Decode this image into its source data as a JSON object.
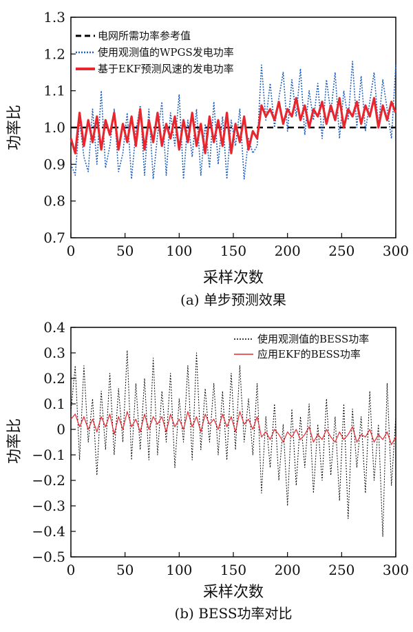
{
  "chart_data": [
    {
      "type": "line",
      "caption": "(a) 单步预测效果",
      "xlabel": "采样次数",
      "ylabel": "功率比",
      "xlim": [
        0,
        300
      ],
      "ylim": [
        0.7,
        1.3
      ],
      "xticks": [
        0,
        50,
        100,
        150,
        200,
        250,
        300
      ],
      "yticks": [
        "0.7",
        "0.8",
        "0.9",
        "1.0",
        "1.1",
        "1.2",
        "1.3"
      ],
      "legend_position": "top-left",
      "series": [
        {
          "name": "电网所需功率参考值",
          "style": "dashed",
          "color": "#000000",
          "x": [
            0,
            175,
            176,
            300
          ],
          "y": [
            1.0,
            1.0,
            1.0,
            1.0
          ]
        },
        {
          "name": "使用观测值的WPGS发电功率",
          "style": "dotted",
          "color": "#1f5fbf",
          "x": [
            0,
            4,
            8,
            12,
            16,
            20,
            24,
            28,
            32,
            36,
            40,
            44,
            48,
            52,
            56,
            60,
            64,
            68,
            72,
            76,
            80,
            84,
            88,
            92,
            96,
            100,
            104,
            108,
            112,
            116,
            120,
            124,
            128,
            132,
            136,
            140,
            144,
            148,
            152,
            156,
            160,
            164,
            168,
            172,
            176,
            180,
            184,
            188,
            192,
            196,
            200,
            204,
            208,
            212,
            216,
            220,
            224,
            228,
            232,
            236,
            240,
            244,
            248,
            252,
            256,
            260,
            264,
            268,
            272,
            276,
            280,
            284,
            288,
            292,
            296,
            300
          ],
          "y": [
            0.9,
            0.87,
            1.02,
            0.92,
            0.88,
            1.05,
            0.9,
            1.1,
            0.89,
            0.95,
            1.05,
            0.88,
            0.93,
            1.04,
            0.86,
            0.99,
            1.06,
            0.87,
            1.05,
            0.86,
            0.98,
            1.07,
            0.87,
            1.04,
            0.95,
            1.09,
            0.86,
            1.02,
            0.92,
            1.05,
            0.87,
            1.01,
            0.89,
            1.07,
            0.9,
            1.03,
            0.86,
            1.02,
            0.95,
            1.05,
            0.86,
            0.97,
            0.93,
            0.95,
            1.17,
            1.02,
            1.12,
            1.0,
            1.08,
            1.15,
            0.99,
            1.13,
            1.03,
            1.16,
            0.98,
            1.1,
            1.02,
            1.12,
            0.97,
            1.13,
            1.04,
            1.15,
            0.97,
            1.1,
            1.02,
            1.18,
            1.0,
            1.14,
            0.99,
            1.07,
            1.15,
            1.0,
            1.13,
            1.05,
            0.97,
            1.17
          ]
        },
        {
          "name": "基于EKF预测风速的发电功率",
          "style": "solid",
          "color": "#e8262e",
          "x": [
            0,
            4,
            8,
            12,
            16,
            20,
            24,
            28,
            32,
            36,
            40,
            44,
            48,
            52,
            56,
            60,
            64,
            68,
            72,
            76,
            80,
            84,
            88,
            92,
            96,
            100,
            104,
            108,
            112,
            116,
            120,
            124,
            128,
            132,
            136,
            140,
            144,
            148,
            152,
            156,
            160,
            164,
            168,
            172,
            176,
            180,
            184,
            188,
            192,
            196,
            200,
            204,
            208,
            212,
            216,
            220,
            224,
            228,
            232,
            236,
            240,
            244,
            248,
            252,
            256,
            260,
            264,
            268,
            272,
            276,
            280,
            284,
            288,
            292,
            296,
            300
          ],
          "y": [
            0.97,
            0.93,
            1.04,
            0.95,
            1.02,
            0.96,
            1.03,
            0.94,
            1.02,
            0.98,
            1.04,
            0.94,
            1.01,
            0.96,
            1.03,
            0.95,
            1.05,
            0.94,
            1.02,
            0.96,
            1.04,
            0.95,
            1.01,
            0.97,
            1.03,
            0.94,
            1.02,
            0.96,
            1.04,
            0.95,
            1.01,
            0.93,
            1.03,
            0.96,
            1.02,
            0.95,
            1.04,
            0.93,
            1.01,
            0.96,
            1.03,
            0.94,
            0.99,
            0.97,
            1.06,
            1.03,
            1.05,
            1.02,
            1.07,
            1.01,
            1.05,
            1.03,
            1.08,
            1.02,
            1.06,
            1.0,
            1.05,
            1.03,
            1.07,
            1.01,
            1.06,
            1.02,
            1.08,
            1.0,
            1.05,
            1.03,
            1.07,
            1.01,
            1.06,
            1.03,
            1.08,
            1.0,
            1.06,
            1.02,
            1.07,
            1.04
          ]
        }
      ]
    },
    {
      "type": "line",
      "caption": "(b) BESS功率对比",
      "xlabel": "采样次数",
      "ylabel": "功率比",
      "xlim": [
        0,
        300
      ],
      "ylim": [
        -0.5,
        0.4
      ],
      "xticks": [
        0,
        50,
        100,
        150,
        200,
        250,
        300
      ],
      "yticks": [
        "−0.5",
        "−0.4",
        "−0.3",
        "−0.2",
        "−0.1",
        "0",
        "0.1",
        "0.2",
        "0.3",
        "0.4"
      ],
      "legend_position": "top-right",
      "series": [
        {
          "name": "使用观测值的BESS功率",
          "style": "dotted",
          "color": "#000000",
          "x": [
            0,
            4,
            8,
            12,
            16,
            20,
            24,
            28,
            32,
            36,
            40,
            44,
            48,
            52,
            56,
            60,
            64,
            68,
            72,
            76,
            80,
            84,
            88,
            92,
            96,
            100,
            104,
            108,
            112,
            116,
            120,
            124,
            128,
            132,
            136,
            140,
            144,
            148,
            152,
            156,
            160,
            164,
            168,
            172,
            176,
            180,
            184,
            188,
            192,
            196,
            200,
            204,
            208,
            212,
            216,
            220,
            224,
            228,
            232,
            236,
            240,
            244,
            248,
            252,
            256,
            260,
            264,
            268,
            272,
            276,
            280,
            284,
            288,
            292,
            296,
            300
          ],
          "y": [
            0.07,
            0.25,
            -0.12,
            0.25,
            -0.05,
            0.12,
            -0.18,
            0.15,
            -0.08,
            0.22,
            -0.1,
            0.16,
            -0.05,
            0.31,
            -0.12,
            0.18,
            -0.08,
            0.2,
            -0.12,
            0.28,
            -0.1,
            0.15,
            -0.05,
            0.22,
            -0.15,
            0.12,
            -0.05,
            0.25,
            -0.12,
            0.3,
            -0.08,
            0.16,
            -0.05,
            0.18,
            -0.1,
            0.15,
            -0.12,
            0.22,
            -0.08,
            0.25,
            -0.05,
            0.12,
            -0.1,
            0.18,
            -0.25,
            0.05,
            -0.15,
            0.1,
            -0.2,
            0.02,
            -0.3,
            0.08,
            -0.22,
            0.05,
            -0.15,
            0.1,
            -0.25,
            0.02,
            -0.2,
            0.12,
            -0.18,
            0.05,
            -0.28,
            0.1,
            -0.35,
            0.08,
            -0.15,
            0.05,
            -0.25,
            0.15,
            -0.2,
            0.02,
            -0.42,
            0.18,
            -0.22,
            0.05
          ]
        },
        {
          "name": "应用EKF的BESS功率",
          "style": "solid",
          "color": "#e8262e",
          "x": [
            0,
            4,
            8,
            12,
            16,
            20,
            24,
            28,
            32,
            36,
            40,
            44,
            48,
            52,
            56,
            60,
            64,
            68,
            72,
            76,
            80,
            84,
            88,
            92,
            96,
            100,
            104,
            108,
            112,
            116,
            120,
            124,
            128,
            132,
            136,
            140,
            144,
            148,
            152,
            156,
            160,
            164,
            168,
            172,
            176,
            180,
            184,
            188,
            192,
            196,
            200,
            204,
            208,
            212,
            216,
            220,
            224,
            228,
            232,
            236,
            240,
            244,
            248,
            252,
            256,
            260,
            264,
            268,
            272,
            276,
            280,
            284,
            288,
            292,
            296,
            300
          ],
          "y": [
            0.04,
            0.06,
            0.01,
            0.05,
            0.0,
            0.04,
            -0.01,
            0.05,
            0.01,
            0.06,
            -0.02,
            0.05,
            0.0,
            0.07,
            0.01,
            0.04,
            -0.01,
            0.06,
            0.0,
            0.05,
            0.02,
            0.05,
            -0.01,
            0.06,
            0.01,
            0.04,
            0.0,
            0.07,
            0.01,
            0.05,
            -0.01,
            0.06,
            0.02,
            0.04,
            0.0,
            0.06,
            0.01,
            0.05,
            -0.01,
            0.07,
            0.02,
            0.04,
            0.0,
            0.05,
            -0.03,
            -0.01,
            -0.04,
            0.0,
            -0.02,
            -0.05,
            -0.01,
            -0.03,
            0.0,
            -0.04,
            -0.02,
            0.01,
            -0.05,
            -0.02,
            -0.04,
            0.0,
            -0.03,
            -0.05,
            -0.01,
            -0.04,
            -0.02,
            0.01,
            -0.05,
            -0.02,
            -0.03,
            0.0,
            -0.05,
            -0.02,
            -0.04,
            -0.01,
            -0.06,
            -0.03
          ]
        }
      ]
    }
  ]
}
